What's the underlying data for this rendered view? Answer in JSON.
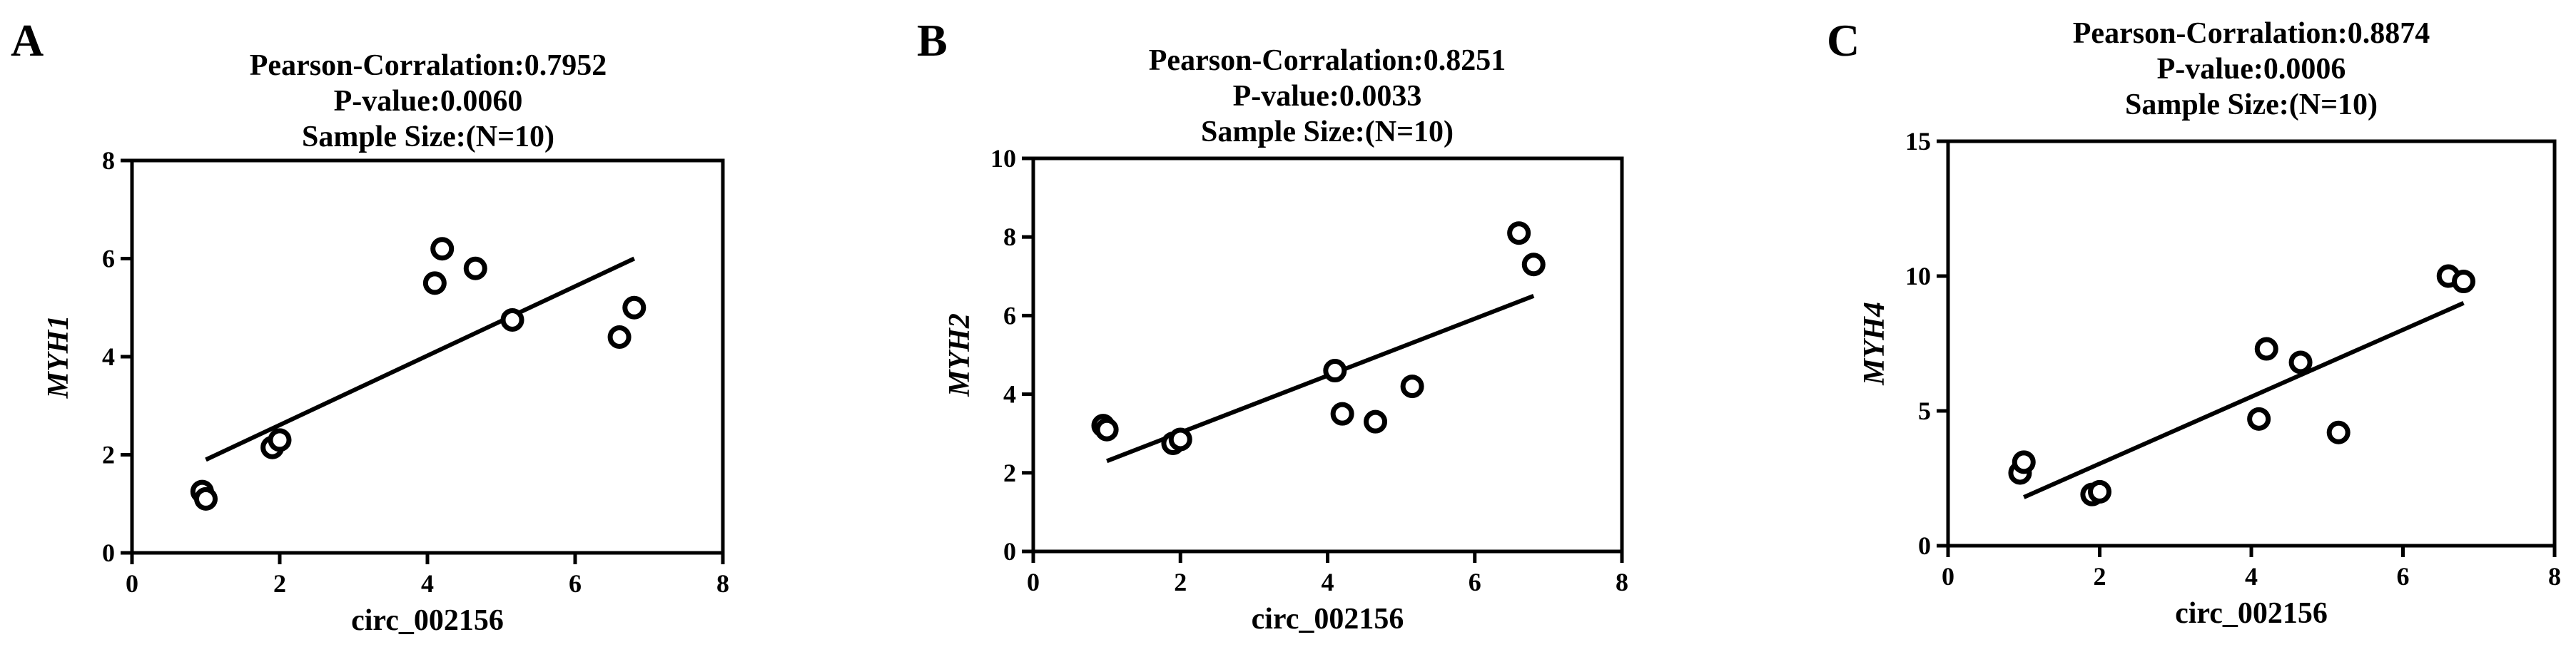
{
  "chart_data": [
    {
      "type": "scatter",
      "panel": "A",
      "title_lines": [
        "Pearson-Corralation:0.7952",
        "P-value:0.0060",
        "Sample Size:(N=10)"
      ],
      "xlabel": "circ_002156",
      "ylabel": "MYH1",
      "xlim": [
        0,
        8
      ],
      "ylim": [
        0,
        8
      ],
      "xticks": [
        0,
        2,
        4,
        6,
        8
      ],
      "yticks": [
        0,
        2,
        4,
        6,
        8
      ],
      "points": [
        {
          "x": 0.95,
          "y": 1.25
        },
        {
          "x": 1.0,
          "y": 1.1
        },
        {
          "x": 1.9,
          "y": 2.15
        },
        {
          "x": 2.0,
          "y": 2.3
        },
        {
          "x": 4.1,
          "y": 5.5
        },
        {
          "x": 4.2,
          "y": 6.2
        },
        {
          "x": 4.65,
          "y": 5.8
        },
        {
          "x": 5.15,
          "y": 4.75
        },
        {
          "x": 6.6,
          "y": 4.4
        },
        {
          "x": 6.8,
          "y": 5.0
        }
      ],
      "fit_line": {
        "x": [
          1.0,
          6.8
        ],
        "y": [
          1.9,
          6.0
        ]
      }
    },
    {
      "type": "scatter",
      "panel": "B",
      "title_lines": [
        "Pearson-Corralation:0.8251",
        "P-value:0.0033",
        "Sample Size:(N=10)"
      ],
      "xlabel": "circ_002156",
      "ylabel": "MYH2",
      "xlim": [
        0,
        8
      ],
      "ylim": [
        0,
        10
      ],
      "xticks": [
        0,
        2,
        4,
        6,
        8
      ],
      "yticks": [
        0,
        2,
        4,
        6,
        8,
        10
      ],
      "points": [
        {
          "x": 0.95,
          "y": 3.2
        },
        {
          "x": 1.0,
          "y": 3.1
        },
        {
          "x": 1.9,
          "y": 2.75
        },
        {
          "x": 2.0,
          "y": 2.85
        },
        {
          "x": 4.1,
          "y": 4.6
        },
        {
          "x": 4.2,
          "y": 3.5
        },
        {
          "x": 4.65,
          "y": 3.3
        },
        {
          "x": 5.15,
          "y": 4.2
        },
        {
          "x": 6.6,
          "y": 8.1
        },
        {
          "x": 6.8,
          "y": 7.3
        }
      ],
      "fit_line": {
        "x": [
          1.0,
          6.8
        ],
        "y": [
          2.3,
          6.5
        ]
      }
    },
    {
      "type": "scatter",
      "panel": "C",
      "title_lines": [
        "Pearson-Corralation:0.8874",
        "P-value:0.0006",
        "Sample Size:(N=10)"
      ],
      "xlabel": "circ_002156",
      "ylabel": "MYH4",
      "xlim": [
        0,
        8
      ],
      "ylim": [
        0,
        15
      ],
      "xticks": [
        0,
        2,
        4,
        6,
        8
      ],
      "yticks": [
        0,
        5,
        10,
        15
      ],
      "points": [
        {
          "x": 0.95,
          "y": 2.7
        },
        {
          "x": 1.0,
          "y": 3.1
        },
        {
          "x": 1.9,
          "y": 1.9
        },
        {
          "x": 2.0,
          "y": 2.0
        },
        {
          "x": 4.1,
          "y": 4.7
        },
        {
          "x": 4.2,
          "y": 7.3
        },
        {
          "x": 4.65,
          "y": 6.8
        },
        {
          "x": 5.15,
          "y": 4.2
        },
        {
          "x": 6.6,
          "y": 10.0
        },
        {
          "x": 6.8,
          "y": 9.8
        }
      ],
      "fit_line": {
        "x": [
          1.0,
          6.8
        ],
        "y": [
          1.8,
          9.0
        ]
      }
    }
  ]
}
